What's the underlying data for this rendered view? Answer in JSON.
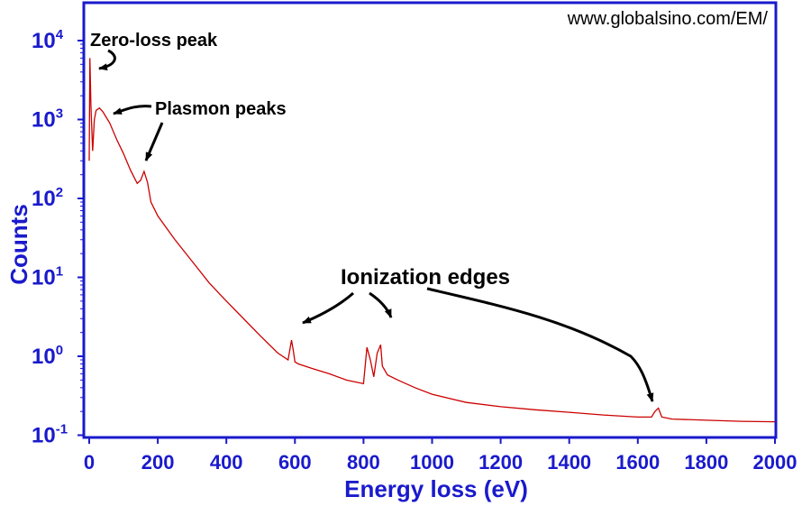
{
  "chart_data": {
    "type": "line",
    "title": "",
    "xlabel": "Energy loss (eV)",
    "ylabel": "Counts",
    "y_scale": "log",
    "xlim": [
      0,
      2000
    ],
    "ylim_exp": [
      -1.25,
      4.5
    ],
    "x_ticks": [
      "0",
      "200",
      "400",
      "600",
      "800",
      "1000",
      "1200",
      "1400",
      "1600",
      "1800",
      "2000"
    ],
    "y_ticks": [
      {
        "base": "10",
        "exp": "4"
      },
      {
        "base": "10",
        "exp": "3"
      },
      {
        "base": "10",
        "exp": "2"
      },
      {
        "base": "10",
        "exp": "1"
      },
      {
        "base": "10",
        "exp": "0"
      },
      {
        "base": "10",
        "exp": "-1"
      }
    ],
    "grid": false,
    "legend": "none",
    "series": [
      {
        "color": "#cc0000",
        "x": [
          0,
          2,
          5,
          10,
          15,
          20,
          30,
          40,
          60,
          80,
          100,
          120,
          140,
          150,
          160,
          170,
          180,
          200,
          250,
          300,
          350,
          400,
          450,
          500,
          550,
          580,
          590,
          595,
          600,
          610,
          650,
          700,
          750,
          800,
          810,
          820,
          830,
          840,
          850,
          855,
          870,
          900,
          950,
          1000,
          1100,
          1200,
          1300,
          1400,
          1500,
          1600,
          1640,
          1650,
          1660,
          1670,
          1700,
          1800,
          1900,
          2000
        ],
        "y": [
          300,
          6000,
          1500,
          400,
          1000,
          1300,
          1400,
          1250,
          900,
          560,
          370,
          230,
          155,
          170,
          220,
          160,
          90,
          60,
          30,
          16,
          8.5,
          5,
          3,
          1.8,
          1.1,
          0.9,
          1.6,
          1.2,
          0.85,
          0.8,
          0.7,
          0.6,
          0.5,
          0.45,
          1.3,
          0.9,
          0.55,
          1.1,
          1.4,
          0.75,
          0.58,
          0.5,
          0.4,
          0.33,
          0.26,
          0.23,
          0.21,
          0.195,
          0.18,
          0.17,
          0.17,
          0.2,
          0.22,
          0.17,
          0.16,
          0.155,
          0.15,
          0.148
        ]
      }
    ],
    "annotations": [
      {
        "text": "Zero-loss peak"
      },
      {
        "text": "Plasmon peaks"
      },
      {
        "text": "Ionization edges"
      }
    ],
    "credit": "www.globalsino.com/EM/"
  }
}
